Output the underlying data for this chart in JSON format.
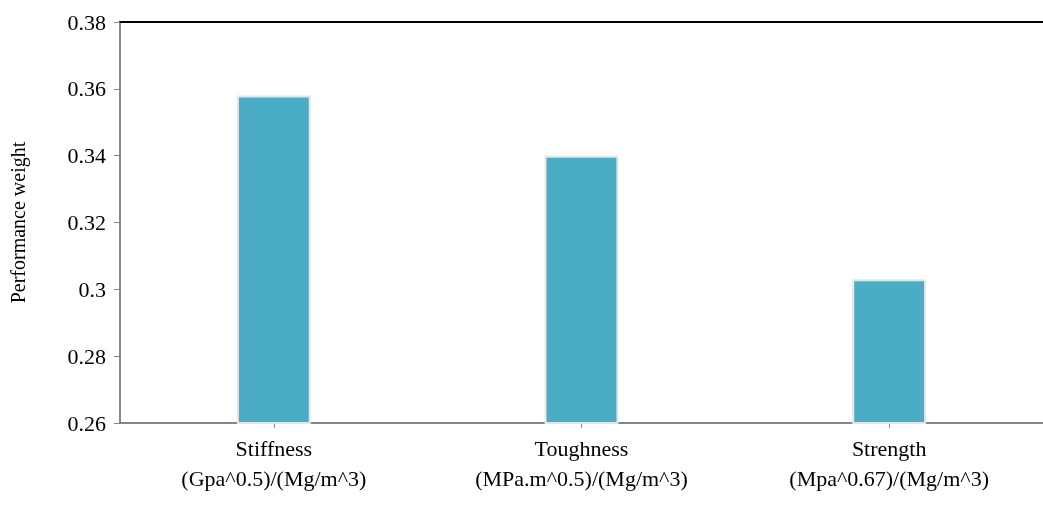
{
  "chart_data": {
    "type": "bar",
    "ylabel": "Performance weight",
    "categories": [
      "Stiffness\n(Gpa^0.5)/(Mg/m^3)",
      "Toughness\n(MPa.m^0.5)/(Mg/m^3)",
      "Strength\n(Mpa^0.67)/(Mg/m^3)"
    ],
    "values": [
      0.358,
      0.34,
      0.303
    ],
    "color": "#4bacc6",
    "ylim": [
      0.26,
      0.38
    ],
    "yticks": [
      0.26,
      0.28,
      0.3,
      0.32,
      0.34,
      0.36,
      0.38
    ],
    "grid": false
  }
}
